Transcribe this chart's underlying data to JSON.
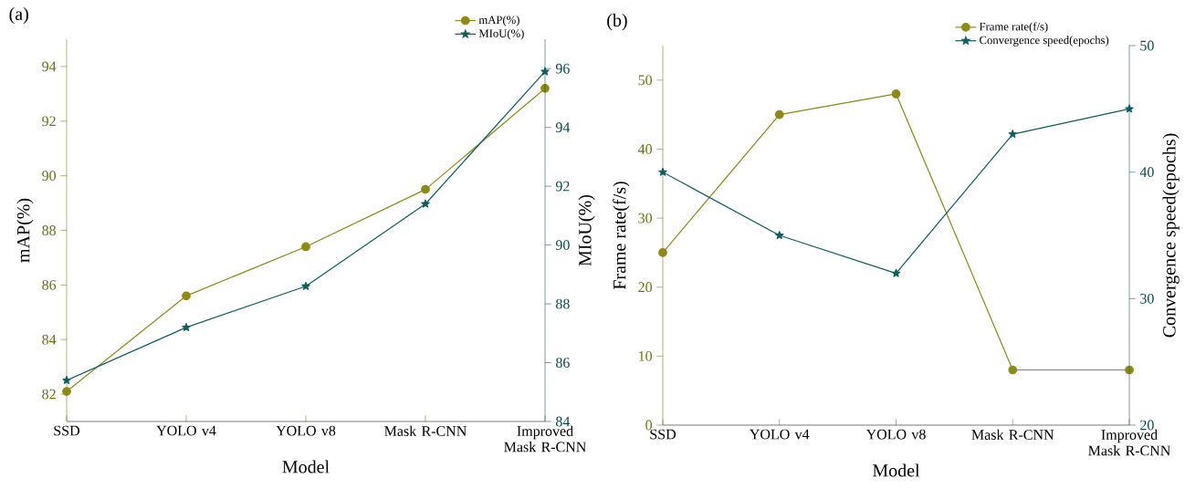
{
  "chart_data": [
    {
      "type": "line",
      "title": "(a)",
      "xlabel": "Model",
      "ylabel": "mAP(%)",
      "y2label": "MIoU(%)",
      "categories": [
        "SSD",
        "YOLO v4",
        "YOLO v8",
        "Mask R-CNN",
        "Improved Mask R-CNN"
      ],
      "series": [
        {
          "name": "mAP(%)",
          "color": "#8b8b14",
          "marker": "circle",
          "values": [
            82.1,
            85.6,
            87.4,
            89.5,
            93.2
          ]
        },
        {
          "name": "MIoU(%)",
          "color": "#0e5e5e",
          "marker": "star",
          "axis": "y2",
          "values": [
            85.4,
            87.2,
            88.6,
            91.4,
            95.9
          ]
        }
      ],
      "ylim": [
        81,
        95
      ],
      "yticks": [
        82,
        84,
        86,
        88,
        90,
        92,
        94
      ],
      "y2lim": [
        84,
        97
      ],
      "y2ticks": [
        84,
        86,
        88,
        90,
        92,
        94,
        96
      ],
      "grid": false,
      "legend": "top right"
    },
    {
      "type": "line",
      "title": "(b)",
      "xlabel": "Model",
      "ylabel": "Frame rate(f/s)",
      "y2label": "Convergence speed(epochs)",
      "categories": [
        "SSD",
        "YOLO v4",
        "YOLO v8",
        "Mask R-CNN",
        "Improved Mask R-CNN"
      ],
      "series": [
        {
          "name": "Frame rate(f/s)",
          "color": "#8b8b14",
          "marker": "circle",
          "values": [
            25,
            45,
            48,
            8,
            8
          ]
        },
        {
          "name": "Convergence speed(epochs)",
          "color": "#0e5e5e",
          "marker": "star",
          "axis": "y2",
          "values": [
            40,
            35,
            32,
            43,
            45
          ]
        }
      ],
      "ylim": [
        0,
        55
      ],
      "yticks": [
        0,
        10,
        20,
        30,
        40,
        50
      ],
      "y2lim": [
        20,
        50
      ],
      "y2ticks": [
        20,
        30,
        40,
        50
      ],
      "grid": false,
      "legend": "top right"
    }
  ]
}
